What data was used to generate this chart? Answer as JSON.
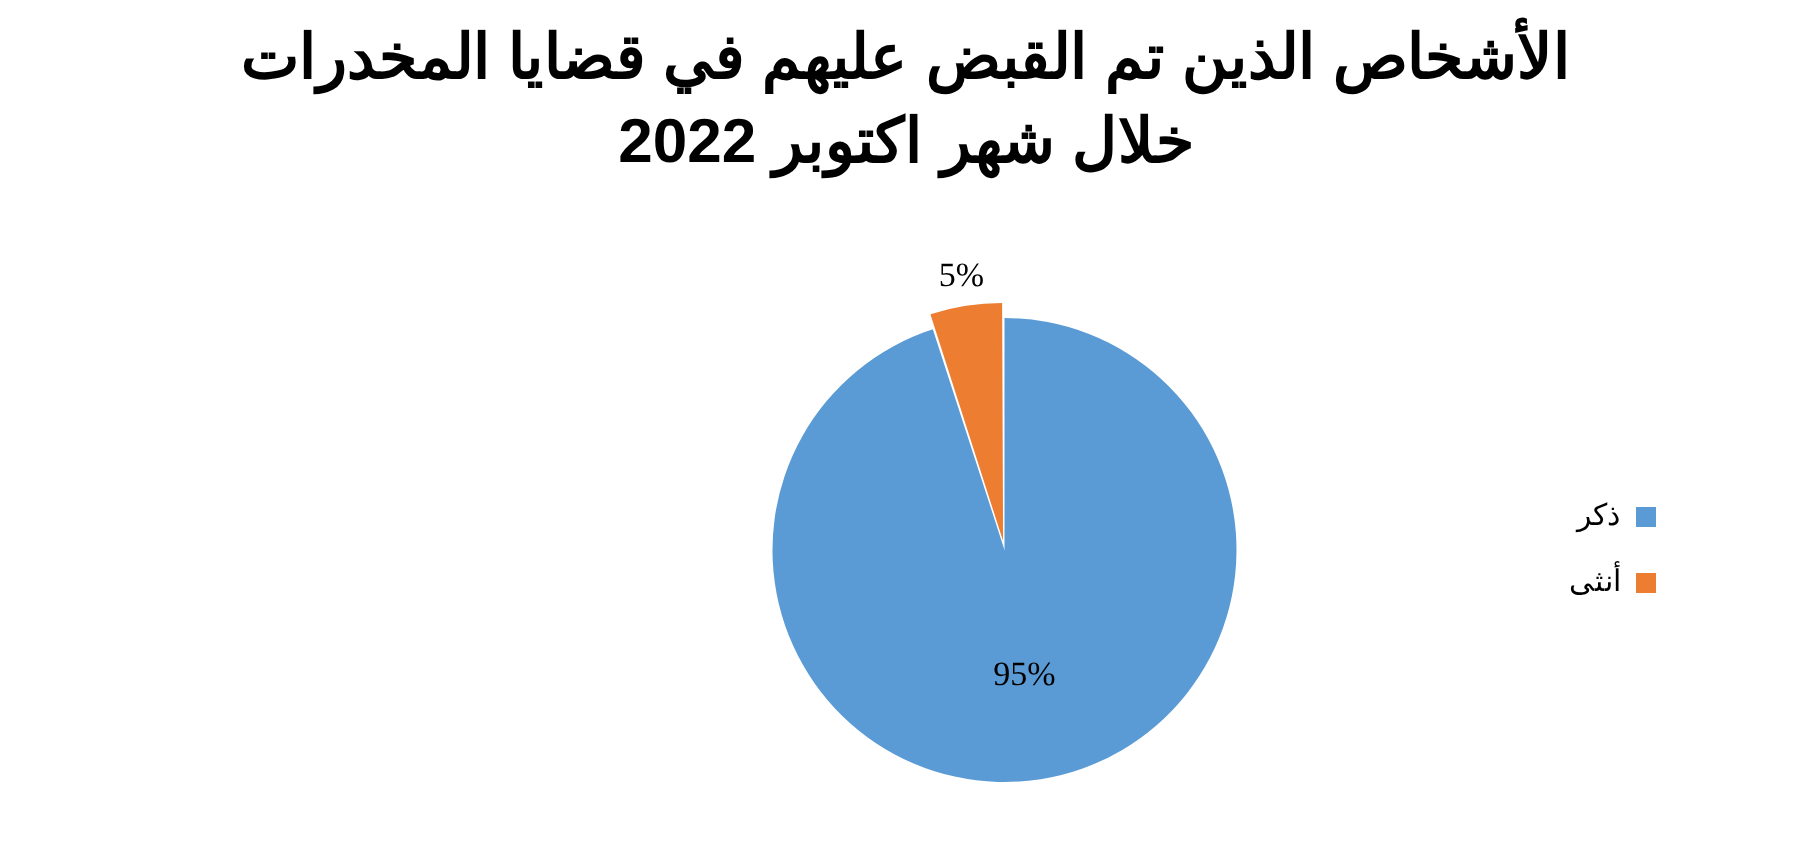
{
  "chart_data": {
    "type": "pie",
    "title": "الأشخاص الذين تم القبض عليهم في قضايا المخدرات خلال شهر اكتوبر 2022",
    "categories": [
      "ذكر",
      "أنثى"
    ],
    "values": [
      95,
      5
    ],
    "colors": [
      "#5b9bd5",
      "#ed7d31"
    ],
    "value_labels": [
      "95%",
      "5%"
    ],
    "legend": "right"
  }
}
